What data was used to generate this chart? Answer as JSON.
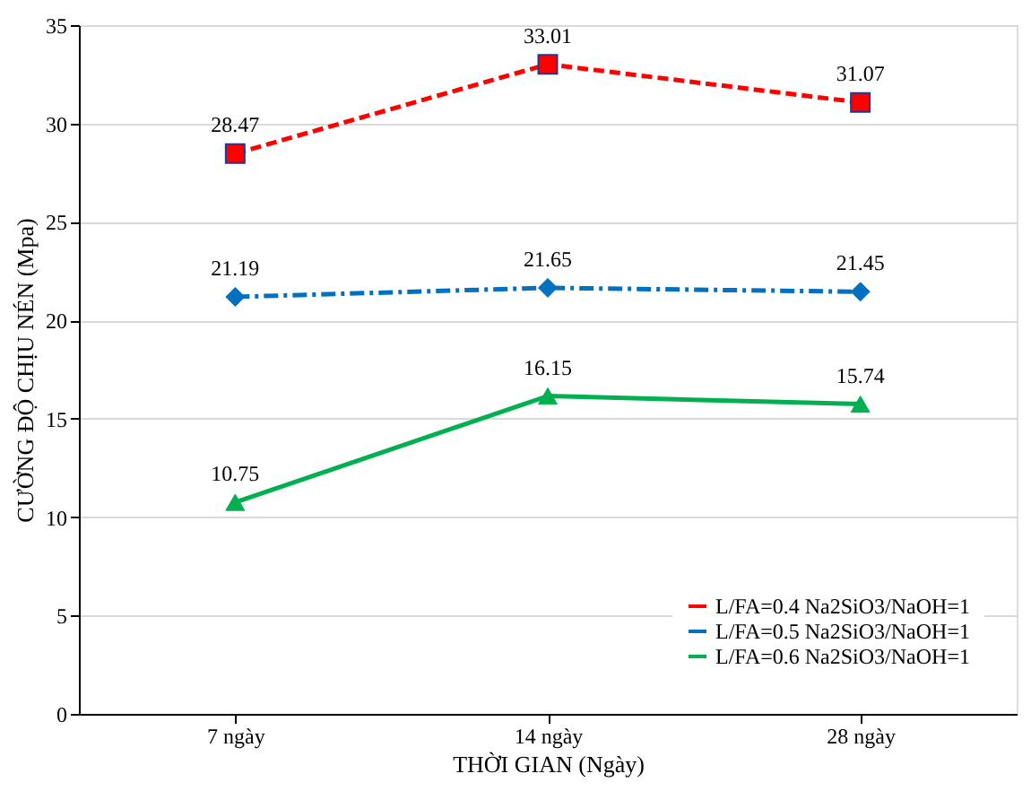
{
  "chart_data": {
    "type": "line",
    "xlabel": "THỜI GIAN (Ngày)",
    "ylabel": "CƯỜNG ĐỘ CHỊU NÉN (Mpa)",
    "categories": [
      "7 ngày",
      "14 ngày",
      "28 ngày"
    ],
    "series": [
      {
        "name": "L/FA=0.4 Na2SiO3/NaOH=1",
        "color": "#ff0000",
        "values": [
          28.47,
          33.01,
          31.07
        ],
        "marker": "square",
        "line_style": "dashed"
      },
      {
        "name": "L/FA=0.5 Na2SiO3/NaOH=1",
        "color": "#0070c0",
        "values": [
          21.19,
          21.65,
          21.45
        ],
        "marker": "diamond",
        "line_style": "dashdot"
      },
      {
        "name": "L/FA=0.6 Na2SiO3/NaOH=1",
        "color": "#00b050",
        "values": [
          10.75,
          16.15,
          15.74
        ],
        "marker": "triangle",
        "line_style": "solid"
      }
    ],
    "ylim": [
      0,
      35
    ],
    "yticks": [
      0,
      5,
      10,
      15,
      20,
      25,
      30,
      35
    ],
    "grid": "y",
    "legend": "bottom right",
    "data_labels": true
  }
}
